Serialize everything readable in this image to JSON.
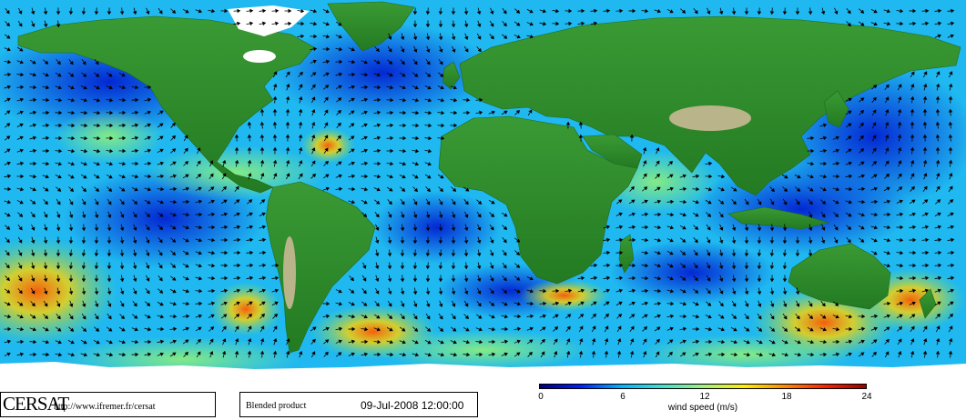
{
  "logo": {
    "text": "CERSAT"
  },
  "url": "http://www.ifremer.fr/cersat",
  "product": {
    "label": "Blended product",
    "date": "09-Jul-2008 12:00:00"
  },
  "colorbar": {
    "title": "wind speed (m/s)",
    "ticks": [
      "0",
      "6",
      "12",
      "18",
      "24"
    ],
    "colors": [
      "#00007a",
      "#0020ff",
      "#00b4ff",
      "#40e0d0",
      "#a0f080",
      "#ffee00",
      "#ff8a00",
      "#ff2000",
      "#9a0000"
    ]
  },
  "colors": {
    "ocean_base": "#1fb8f0",
    "land": "#2f8c2a",
    "land_high": "#b9b48a",
    "ice": "#ffffff"
  }
}
